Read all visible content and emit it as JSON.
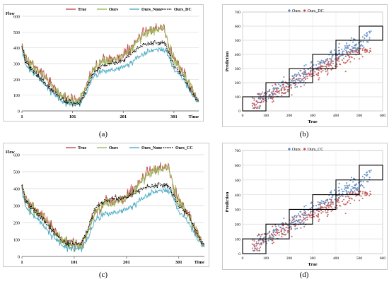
{
  "panels": [
    {
      "caption": "(a)",
      "chart_data": {
        "type": "line",
        "title": "",
        "xlabel": "Time",
        "ylabel": "Flow",
        "xlim": [
          1,
          350
        ],
        "ylim": [
          0,
          600
        ],
        "x_ticks": [
          1,
          101,
          201,
          301
        ],
        "x_tick_labels": [
          "1",
          "101",
          "201",
          "301"
        ],
        "y_ticks": [
          0,
          100,
          200,
          300,
          400,
          500,
          600
        ],
        "grid": true,
        "legend": "top",
        "series": [
          {
            "name": "True",
            "color": "#c0504d",
            "style": "solid",
            "noise": 28,
            "x": [
              1,
              8,
              20,
              40,
              60,
              80,
              100,
              115,
              125,
              140,
              160,
              180,
              200,
              220,
              240,
              255,
              265,
              275,
              282,
              290,
              300,
              320,
              340,
              350
            ],
            "y": [
              420,
              340,
              300,
              240,
              170,
              90,
              65,
              75,
              130,
              260,
              320,
              330,
              350,
              420,
              500,
              515,
              520,
              530,
              520,
              420,
              340,
              250,
              120,
              70
            ]
          },
          {
            "name": "Ours",
            "color": "#9bbb59",
            "style": "solid",
            "noise": 25,
            "x": [
              1,
              8,
              20,
              40,
              60,
              80,
              100,
              115,
              125,
              140,
              160,
              180,
              200,
              220,
              240,
              255,
              265,
              275,
              282,
              290,
              300,
              320,
              340,
              350
            ],
            "y": [
              410,
              330,
              290,
              230,
              160,
              85,
              60,
              70,
              125,
              250,
              310,
              320,
              340,
              410,
              490,
              505,
              510,
              520,
              505,
              410,
              330,
              240,
              115,
              65
            ]
          },
          {
            "name": "Ours_None",
            "color": "#4bacc6",
            "style": "solid",
            "noise": 14,
            "x": [
              1,
              8,
              20,
              40,
              60,
              80,
              100,
              115,
              125,
              140,
              160,
              180,
              200,
              220,
              240,
              255,
              265,
              275,
              282,
              290,
              300,
              320,
              340,
              350
            ],
            "y": [
              390,
              290,
              250,
              190,
              120,
              60,
              40,
              45,
              95,
              210,
              255,
              260,
              275,
              310,
              360,
              380,
              385,
              390,
              390,
              350,
              270,
              200,
              90,
              50
            ]
          },
          {
            "name": "Ours_DC",
            "color": "#000000",
            "style": "dotted",
            "noise": 12,
            "x": [
              1,
              8,
              20,
              40,
              60,
              80,
              100,
              115,
              125,
              140,
              160,
              180,
              200,
              220,
              240,
              255,
              265,
              275,
              282,
              290,
              300,
              320,
              340,
              350
            ],
            "y": [
              410,
              320,
              270,
              200,
              130,
              70,
              45,
              50,
              110,
              230,
              290,
              300,
              320,
              370,
              420,
              430,
              435,
              430,
              430,
              380,
              290,
              210,
              100,
              55
            ]
          }
        ]
      }
    },
    {
      "caption": "(b)",
      "chart_data": {
        "type": "scatter",
        "title": "",
        "xlabel": "True",
        "ylabel": "Prediction",
        "xlim": [
          0,
          600
        ],
        "ylim": [
          0,
          700
        ],
        "x_ticks": [
          0,
          100,
          200,
          300,
          400,
          500,
          600
        ],
        "y_ticks": [
          0,
          100,
          200,
          300,
          400,
          500,
          600,
          700
        ],
        "grid": true,
        "legend": "top",
        "boxes": [
          [
            0,
            100
          ],
          [
            100,
            200
          ],
          [
            200,
            300
          ],
          [
            300,
            400
          ],
          [
            400,
            500
          ],
          [
            500,
            600
          ]
        ],
        "series": [
          {
            "name": "Ours",
            "color": "#4f81bd",
            "slope": 0.98,
            "offset": 0,
            "sd": 28,
            "cap": 0
          },
          {
            "name": "Ours_DC",
            "color": "#c0504d",
            "slope": 0.86,
            "offset": 8,
            "sd": 30,
            "cap": 430
          }
        ]
      }
    },
    {
      "caption": "(c)",
      "chart_data": {
        "type": "line",
        "title": "",
        "xlabel": "Time",
        "ylabel": "Flow",
        "xlim": [
          1,
          350
        ],
        "ylim": [
          0,
          600
        ],
        "x_ticks": [
          1,
          101,
          201,
          301
        ],
        "x_tick_labels": [
          "1",
          "101",
          "201",
          "301"
        ],
        "y_ticks": [
          0,
          100,
          200,
          300,
          400,
          500,
          600
        ],
        "grid": true,
        "legend": "top",
        "series": [
          {
            "name": "True",
            "color": "#c0504d",
            "style": "solid",
            "noise": 28,
            "x": [
              1,
              8,
              20,
              40,
              60,
              80,
              100,
              115,
              125,
              140,
              160,
              180,
              200,
              220,
              240,
              255,
              265,
              275,
              282,
              290,
              300,
              320,
              340,
              350
            ],
            "y": [
              420,
              340,
              300,
              240,
              170,
              90,
              65,
              75,
              130,
              260,
              320,
              330,
              350,
              420,
              500,
              515,
              520,
              530,
              520,
              420,
              340,
              250,
              120,
              70
            ]
          },
          {
            "name": "Ours",
            "color": "#9bbb59",
            "style": "solid",
            "noise": 25,
            "x": [
              1,
              8,
              20,
              40,
              60,
              80,
              100,
              115,
              125,
              140,
              160,
              180,
              200,
              220,
              240,
              255,
              265,
              275,
              282,
              290,
              300,
              320,
              340,
              350
            ],
            "y": [
              410,
              330,
              290,
              230,
              160,
              85,
              60,
              70,
              125,
              250,
              310,
              320,
              340,
              410,
              490,
              505,
              510,
              520,
              505,
              410,
              330,
              240,
              115,
              65
            ]
          },
          {
            "name": "Ours_None",
            "color": "#4bacc6",
            "style": "solid",
            "noise": 14,
            "x": [
              1,
              8,
              20,
              40,
              60,
              80,
              100,
              115,
              125,
              140,
              160,
              180,
              200,
              220,
              240,
              255,
              265,
              275,
              282,
              290,
              300,
              320,
              340,
              350
            ],
            "y": [
              390,
              290,
              250,
              190,
              120,
              60,
              40,
              45,
              95,
              210,
              255,
              260,
              275,
              310,
              360,
              380,
              385,
              390,
              390,
              350,
              270,
              200,
              90,
              50
            ]
          },
          {
            "name": "Ours_CC",
            "color": "#000000",
            "style": "dotted",
            "noise": 12,
            "x": [
              1,
              8,
              20,
              40,
              60,
              80,
              100,
              115,
              125,
              140,
              160,
              180,
              200,
              220,
              240,
              255,
              265,
              275,
              282,
              290,
              300,
              320,
              340,
              350
            ],
            "y": [
              420,
              335,
              290,
              225,
              150,
              80,
              70,
              80,
              140,
              280,
              330,
              340,
              350,
              380,
              410,
              420,
              425,
              420,
              410,
              370,
              300,
              240,
              110,
              60
            ]
          }
        ]
      }
    },
    {
      "caption": "(d)",
      "chart_data": {
        "type": "scatter",
        "title": "",
        "xlabel": "True",
        "ylabel": "Prediction",
        "xlim": [
          0,
          600
        ],
        "ylim": [
          0,
          700
        ],
        "x_ticks": [
          0,
          100,
          200,
          300,
          400,
          500,
          600
        ],
        "y_ticks": [
          0,
          100,
          200,
          300,
          400,
          500,
          600,
          700
        ],
        "grid": true,
        "legend": "top",
        "boxes": [
          [
            0,
            100
          ],
          [
            100,
            200
          ],
          [
            200,
            300
          ],
          [
            300,
            400
          ],
          [
            400,
            500
          ],
          [
            500,
            600
          ]
        ],
        "series": [
          {
            "name": "Ours",
            "color": "#4f81bd",
            "slope": 0.98,
            "offset": 0,
            "sd": 28,
            "cap": 0
          },
          {
            "name": "Ours_CC",
            "color": "#c0504d",
            "slope": 0.82,
            "offset": 20,
            "sd": 30,
            "cap": 410
          }
        ]
      }
    }
  ]
}
